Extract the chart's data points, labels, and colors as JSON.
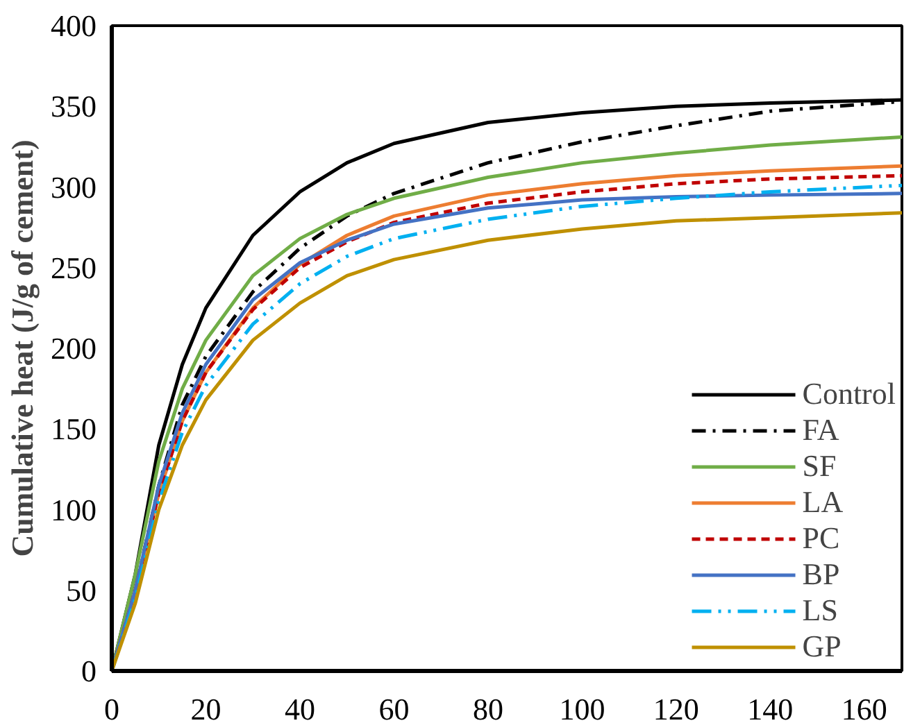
{
  "chart_data": {
    "type": "line",
    "ylabel": "Cumulative heat (J/g of cement)",
    "x": [
      0,
      5,
      10,
      15,
      20,
      30,
      40,
      50,
      60,
      80,
      100,
      120,
      140,
      168
    ],
    "xlim": [
      0,
      168
    ],
    "ylim": [
      0,
      400
    ],
    "xticks": [
      0,
      20,
      40,
      60,
      80,
      100,
      120,
      140,
      160
    ],
    "yticks": [
      0,
      50,
      100,
      150,
      200,
      250,
      300,
      350,
      400
    ],
    "grid": false,
    "legend": "bottom right",
    "marker": "none",
    "series": [
      {
        "name": "Control",
        "color": "#000000",
        "line_style": "solid",
        "values": [
          0,
          60,
          140,
          190,
          225,
          270,
          297,
          315,
          327,
          340,
          346,
          350,
          352,
          354
        ]
      },
      {
        "name": "FA",
        "color": "#000000",
        "line_style": "dashdot",
        "values": [
          0,
          50,
          115,
          165,
          195,
          235,
          262,
          282,
          296,
          315,
          328,
          338,
          347,
          353
        ]
      },
      {
        "name": "SF",
        "color": "#70ad47",
        "line_style": "solid",
        "values": [
          0,
          60,
          130,
          175,
          205,
          245,
          268,
          283,
          293,
          306,
          315,
          321,
          326,
          331
        ]
      },
      {
        "name": "LA",
        "color": "#ed7d31",
        "line_style": "solid",
        "values": [
          0,
          50,
          110,
          155,
          185,
          225,
          252,
          270,
          282,
          295,
          302,
          307,
          310,
          313
        ]
      },
      {
        "name": "PC",
        "color": "#c00000",
        "line_style": "dashed",
        "values": [
          0,
          50,
          110,
          155,
          185,
          224,
          250,
          266,
          278,
          290,
          297,
          302,
          305,
          307
        ]
      },
      {
        "name": "BP",
        "color": "#4472c4",
        "line_style": "solid",
        "values": [
          0,
          50,
          115,
          160,
          190,
          230,
          253,
          267,
          277,
          287,
          292,
          294,
          295,
          296
        ]
      },
      {
        "name": "LS",
        "color": "#00b0f0",
        "line_style": "dashdotdot",
        "values": [
          0,
          45,
          105,
          148,
          177,
          215,
          240,
          257,
          268,
          280,
          288,
          293,
          297,
          301
        ]
      },
      {
        "name": "GP",
        "color": "#bf9000",
        "line_style": "solid",
        "values": [
          0,
          42,
          100,
          140,
          168,
          205,
          228,
          245,
          255,
          267,
          274,
          279,
          281,
          284
        ]
      }
    ]
  }
}
